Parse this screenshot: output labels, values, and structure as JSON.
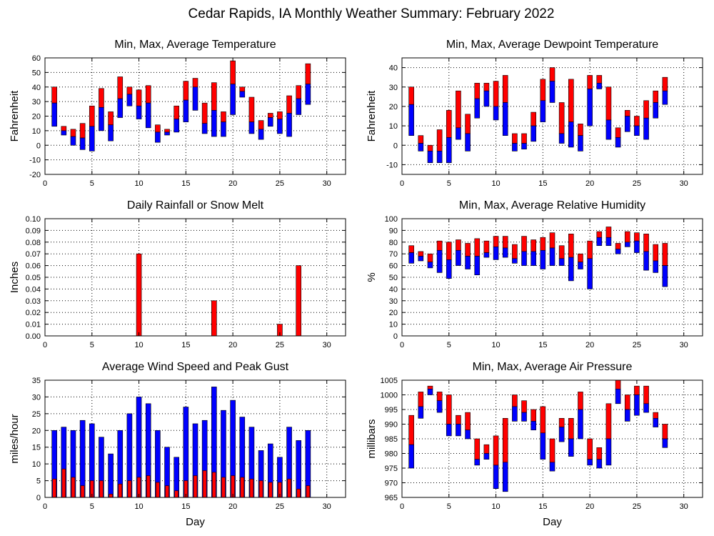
{
  "title": "Cedar Rapids, IA Monthly Weather Summary: February 2022",
  "colors": {
    "upper": "#ff0000",
    "lower": "#0000ff",
    "rain": "#ff0000"
  },
  "chart_data": [
    {
      "id": "temperature",
      "type": "bar",
      "style": "range",
      "title": "Min, Max, Average Temperature",
      "xlabel": "",
      "ylabel": "Fahrenheit",
      "xlim": [
        0,
        32
      ],
      "ylim": [
        -20,
        60
      ],
      "xticks": [
        0,
        5,
        10,
        15,
        20,
        25,
        30
      ],
      "yticks": [
        -20,
        -10,
        0,
        10,
        20,
        30,
        40,
        50,
        60
      ],
      "tick_decimals": 0,
      "x": [
        1,
        2,
        3,
        4,
        5,
        6,
        7,
        8,
        9,
        10,
        11,
        12,
        13,
        14,
        15,
        16,
        17,
        18,
        19,
        20,
        21,
        22,
        23,
        24,
        25,
        26,
        27,
        28
      ],
      "min": [
        13,
        7,
        0,
        -3,
        -4,
        10,
        3,
        19,
        27,
        18,
        12,
        2,
        7,
        9,
        16,
        24,
        8,
        6,
        6,
        21,
        33,
        8,
        4,
        13,
        8,
        6,
        21,
        28
      ],
      "avg": [
        29,
        10,
        6,
        5,
        13,
        26,
        14,
        32,
        35,
        27,
        29,
        9,
        9,
        18,
        31,
        40,
        15,
        24,
        16,
        42,
        37,
        16,
        11,
        19,
        18,
        22,
        32,
        42
      ],
      "max": [
        40,
        13,
        11,
        15,
        27,
        39,
        23,
        47,
        40,
        38,
        41,
        14,
        11,
        27,
        44,
        46,
        29,
        43,
        23,
        58,
        40,
        33,
        17,
        22,
        23,
        34,
        41,
        56
      ],
      "grid": true,
      "legend": "none"
    },
    {
      "id": "dewpoint",
      "type": "bar",
      "style": "range",
      "title": "Min, Max, Average Dewpoint Temperature",
      "xlabel": "",
      "ylabel": "Fahrenheit",
      "xlim": [
        0,
        32
      ],
      "ylim": [
        -15,
        45
      ],
      "xticks": [
        0,
        5,
        10,
        15,
        20,
        25,
        30
      ],
      "yticks": [
        -10,
        0,
        10,
        20,
        30,
        40
      ],
      "tick_decimals": 0,
      "x": [
        1,
        2,
        3,
        4,
        5,
        6,
        7,
        8,
        9,
        10,
        11,
        12,
        13,
        14,
        15,
        16,
        17,
        18,
        19,
        20,
        21,
        22,
        23,
        24,
        25,
        26,
        27,
        28
      ],
      "min": [
        5,
        -3,
        -9,
        -9,
        -9,
        3,
        -3,
        14,
        20,
        13,
        5,
        -3,
        -2,
        2,
        12,
        22,
        1,
        -1,
        -3,
        10,
        29,
        3,
        -1,
        7,
        5,
        3,
        14,
        21
      ],
      "avg": [
        21,
        1,
        -3,
        -3,
        4,
        9,
        6,
        24,
        28,
        20,
        22,
        1,
        1,
        10,
        23,
        33,
        6,
        12,
        5,
        29,
        32,
        13,
        4,
        15,
        10,
        14,
        22,
        28
      ],
      "max": [
        30,
        5,
        0,
        8,
        18,
        28,
        16,
        32,
        32,
        33,
        36,
        6,
        6,
        17,
        34,
        40,
        22,
        34,
        11,
        36,
        36,
        30,
        9,
        18,
        15,
        23,
        28,
        35
      ],
      "grid": true,
      "legend": "none"
    },
    {
      "id": "rainfall",
      "type": "bar",
      "style": "single",
      "title": "Daily Rainfall or Snow Melt",
      "xlabel": "",
      "ylabel": "Inches",
      "xlim": [
        0,
        32
      ],
      "ylim": [
        0,
        0.1
      ],
      "xticks": [
        0,
        5,
        10,
        15,
        20,
        25,
        30
      ],
      "yticks": [
        0,
        0.01,
        0.02,
        0.03,
        0.04,
        0.05,
        0.06,
        0.07,
        0.08,
        0.09,
        0.1
      ],
      "tick_decimals": 2,
      "x": [
        10,
        18,
        25,
        27
      ],
      "values": [
        0.07,
        0.03,
        0.01,
        0.06
      ],
      "grid": true,
      "legend": "none"
    },
    {
      "id": "humidity",
      "type": "bar",
      "style": "range",
      "title": "Min, Max, Average Relative Humidity",
      "xlabel": "",
      "ylabel": "%",
      "xlim": [
        0,
        32
      ],
      "ylim": [
        0,
        100
      ],
      "xticks": [
        0,
        5,
        10,
        15,
        20,
        25,
        30
      ],
      "yticks": [
        0,
        10,
        20,
        30,
        40,
        50,
        60,
        70,
        80,
        90,
        100
      ],
      "tick_decimals": 0,
      "x": [
        1,
        2,
        3,
        4,
        5,
        6,
        7,
        8,
        9,
        10,
        11,
        12,
        13,
        14,
        15,
        16,
        17,
        18,
        19,
        20,
        21,
        22,
        23,
        24,
        25,
        26,
        27,
        28
      ],
      "min": [
        62,
        64,
        58,
        54,
        49,
        60,
        57,
        52,
        67,
        65,
        67,
        62,
        60,
        60,
        57,
        60,
        60,
        47,
        57,
        40,
        77,
        77,
        70,
        76,
        71,
        56,
        54,
        42
      ],
      "avg": [
        71,
        68,
        63,
        73,
        65,
        73,
        68,
        68,
        71,
        76,
        75,
        66,
        72,
        72,
        73,
        75,
        66,
        67,
        63,
        66,
        84,
        84,
        74,
        80,
        81,
        72,
        64,
        60
      ],
      "max": [
        77,
        72,
        70,
        81,
        80,
        82,
        79,
        83,
        81,
        85,
        85,
        78,
        85,
        82,
        84,
        88,
        77,
        87,
        70,
        81,
        89,
        93,
        79,
        89,
        88,
        87,
        78,
        79
      ],
      "grid": true,
      "legend": "none"
    },
    {
      "id": "wind",
      "type": "bar",
      "style": "overlay",
      "title": "Average Wind Speed and Peak Gust",
      "xlabel": "Day",
      "ylabel": "miles/hour",
      "xlim": [
        0,
        32
      ],
      "ylim": [
        0,
        35
      ],
      "xticks": [
        0,
        5,
        10,
        15,
        20,
        25,
        30
      ],
      "yticks": [
        0,
        5,
        10,
        15,
        20,
        25,
        30,
        35
      ],
      "tick_decimals": 0,
      "x": [
        1,
        2,
        3,
        4,
        5,
        6,
        7,
        8,
        9,
        10,
        11,
        12,
        13,
        14,
        15,
        16,
        17,
        18,
        19,
        20,
        21,
        22,
        23,
        24,
        25,
        26,
        27,
        28
      ],
      "gust": [
        20,
        21,
        20,
        23,
        22,
        18,
        13,
        20,
        25,
        30,
        28,
        20,
        15,
        12,
        27,
        22,
        23,
        33,
        26,
        29,
        24,
        21,
        14,
        16,
        12,
        21,
        17,
        20
      ],
      "avg": [
        5.5,
        8.5,
        6,
        3.5,
        5,
        5,
        1,
        4,
        5,
        6,
        6.5,
        4.5,
        3.5,
        2,
        5,
        6.5,
        8,
        7.5,
        6,
        6.5,
        6,
        5.5,
        5,
        4.5,
        4.5,
        5.5,
        2.5,
        3.5
      ],
      "grid": true,
      "legend": "none"
    },
    {
      "id": "pressure",
      "type": "bar",
      "style": "range",
      "title": "Min, Max, Average Air Pressure",
      "xlabel": "Day",
      "ylabel": "millibars",
      "xlim": [
        0,
        32
      ],
      "ylim": [
        965,
        1005
      ],
      "xticks": [
        0,
        5,
        10,
        15,
        20,
        25,
        30
      ],
      "yticks": [
        965,
        970,
        975,
        980,
        985,
        990,
        995,
        1000,
        1005
      ],
      "tick_decimals": 0,
      "x": [
        1,
        2,
        3,
        4,
        5,
        6,
        7,
        8,
        9,
        10,
        11,
        12,
        13,
        14,
        15,
        16,
        17,
        18,
        19,
        20,
        21,
        22,
        23,
        24,
        25,
        26,
        27,
        28
      ],
      "min": [
        975,
        992,
        1000,
        994,
        986,
        986,
        985,
        976,
        978,
        968,
        967,
        991,
        991,
        988,
        978,
        974,
        984,
        979,
        985,
        976,
        975,
        976,
        997,
        991,
        993,
        994,
        989,
        982
      ],
      "avg": [
        983,
        996,
        1002,
        998,
        990,
        990,
        988,
        978,
        980,
        976,
        977,
        996,
        994,
        991,
        987,
        977,
        989,
        985,
        995,
        978,
        978,
        985,
        1002,
        995,
        1000,
        997,
        992,
        985
      ],
      "max": [
        993,
        1001,
        1003,
        1001,
        1000,
        993,
        994,
        985,
        983,
        986,
        992,
        1000,
        998,
        995,
        996,
        985,
        992,
        992,
        1001,
        985,
        982,
        997,
        1005,
        1000,
        1003,
        1003,
        994,
        990
      ],
      "grid": true,
      "legend": "none"
    }
  ]
}
